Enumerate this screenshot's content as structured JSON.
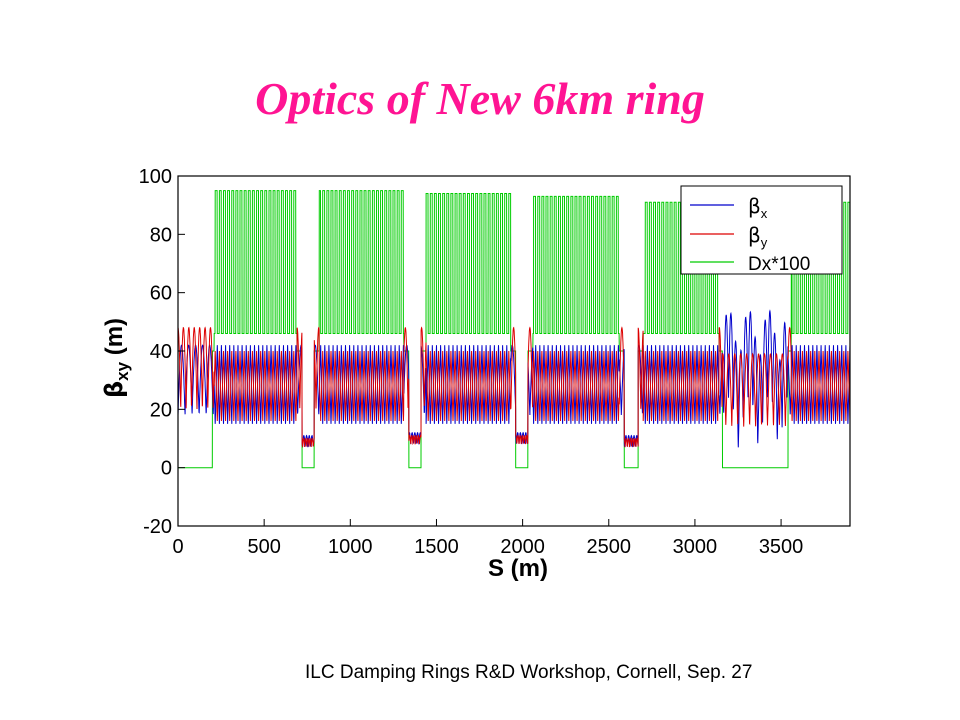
{
  "slide": {
    "title": "Optics of New 6km ring",
    "footer": "ILC Damping Rings R&D Workshop, Cornell, Sep. 27"
  },
  "chart_data": {
    "type": "line",
    "xlabel": "S (m)",
    "ylabel_greek": "β",
    "ylabel_sub": "xy",
    "ylabel_unit": "(m)",
    "xlim": [
      0,
      3900
    ],
    "ylim": [
      -20,
      100
    ],
    "xticks": [
      0,
      500,
      1000,
      1500,
      2000,
      2500,
      3000,
      3500
    ],
    "yticks": [
      -20,
      0,
      20,
      40,
      60,
      80,
      100
    ],
    "grid": false,
    "legend_position": "top-right",
    "arcs": [
      {
        "start": 210,
        "end": 690,
        "dx100_peak": 95
      },
      {
        "start": 820,
        "end": 1310,
        "dx100_peak": 95
      },
      {
        "start": 1440,
        "end": 1930,
        "dx100_peak": 94
      },
      {
        "start": 2060,
        "end": 2560,
        "dx100_peak": 93
      },
      {
        "start": 2700,
        "end": 3140,
        "dx100_peak": 91
      },
      {
        "start": 3560,
        "end": 3900,
        "dx100_peak": 91
      }
    ],
    "straights": [
      {
        "start": 720,
        "end": 790,
        "beta_min": 7
      },
      {
        "start": 1340,
        "end": 1410,
        "beta_min": 8
      },
      {
        "start": 1960,
        "end": 2030,
        "beta_min": 8
      },
      {
        "start": 2590,
        "end": 2670,
        "beta_min": 7
      },
      {
        "start": 3160,
        "end": 3540,
        "beta_min": 4
      }
    ],
    "series": [
      {
        "name": "x",
        "color": "#0000cc",
        "arc_max": 42,
        "arc_min": 15
      },
      {
        "name": "y",
        "color": "#dd0000",
        "arc_max": 40,
        "arc_min": 16
      },
      {
        "name": "Dx*100",
        "color": "#00cc00",
        "arc_max": 95,
        "arc_min": 46
      }
    ],
    "legend": [
      {
        "greek": "β",
        "sub": "x",
        "text": ""
      },
      {
        "greek": "β",
        "sub": "y",
        "text": ""
      },
      {
        "greek": "",
        "sub": "",
        "text": "Dx*100"
      }
    ]
  }
}
